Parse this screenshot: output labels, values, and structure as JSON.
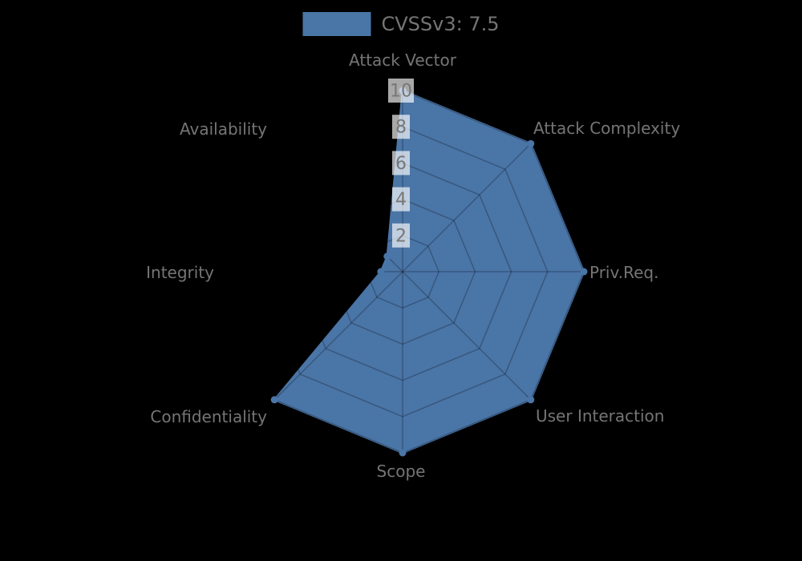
{
  "legend": {
    "label": "CVSSv3: 7.5"
  },
  "chart_data": {
    "type": "radar",
    "title": "",
    "categories": [
      "Attack Vector",
      "Attack Complexity",
      "Priv.Req.",
      "User Interaction",
      "Scope",
      "Confidentiality",
      "Integrity",
      "Availability"
    ],
    "series": [
      {
        "name": "CVSSv3: 7.5",
        "values": [
          10,
          10,
          10,
          10,
          10,
          10,
          1.2,
          1.2
        ]
      }
    ],
    "rmax": 10,
    "rmin": 0,
    "rticks": [
      2,
      4,
      6,
      8,
      10
    ],
    "start_angle_deg": 90,
    "direction": "clockwise",
    "grid": true,
    "grid_style": "polygon",
    "legend_position": "top-center",
    "fill_color": "#4a75a7",
    "grid_color": "rgba(0,0,0,0.25)",
    "tick_box_color": "rgba(255,255,255,0.66)",
    "tick_text_color": "#777777",
    "label_color": "#757575",
    "background": "#000000"
  }
}
